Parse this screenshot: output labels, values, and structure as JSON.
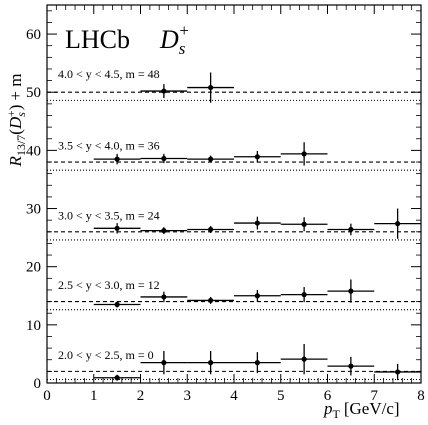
{
  "chart_data": {
    "type": "scatter",
    "experiment": "LHCb",
    "particle": {
      "base": "D",
      "sub": "s",
      "sup": "+"
    },
    "xlabel": {
      "main": "p",
      "sub": "T",
      "unit": "[GeV/c]"
    },
    "ylabel": {
      "prefix": "R",
      "sub": "13/7",
      "arg_base": "D",
      "arg_sub": "s",
      "arg_sup": "+",
      "suffix": "+ m"
    },
    "xlim": [
      0,
      8
    ],
    "ylim": [
      0,
      65
    ],
    "xticks": [
      0,
      1,
      2,
      3,
      4,
      5,
      6,
      7,
      8
    ],
    "yticks": [
      0,
      10,
      20,
      30,
      40,
      50,
      60
    ],
    "reference_lines": {
      "dashed_offset": 2.0,
      "dotted_offset": 0.6
    },
    "series": [
      {
        "label": "2.0 < y < 2.5, m = 0",
        "offset": 0,
        "points": [
          {
            "x": 1.5,
            "xlo": 1,
            "xhi": 2,
            "y": 0.9,
            "err": 0.5
          },
          {
            "x": 2.5,
            "xlo": 2,
            "xhi": 3,
            "y": 3.5,
            "err": 2.0
          },
          {
            "x": 3.5,
            "xlo": 3,
            "xhi": 4,
            "y": 3.5,
            "err": 2.0
          },
          {
            "x": 4.5,
            "xlo": 4,
            "xhi": 5,
            "y": 3.5,
            "err": 1.8
          },
          {
            "x": 5.5,
            "xlo": 5,
            "xhi": 6,
            "y": 4.1,
            "err": 2.6
          },
          {
            "x": 6.5,
            "xlo": 6,
            "xhi": 7,
            "y": 2.9,
            "err": 1.6
          },
          {
            "x": 7.5,
            "xlo": 7,
            "xhi": 8,
            "y": 1.9,
            "err": 1.4
          }
        ]
      },
      {
        "label": "2.5 < y < 3.0, m = 12",
        "offset": 12,
        "points": [
          {
            "x": 1.5,
            "xlo": 1,
            "xhi": 2,
            "y": 13.5,
            "err": 0.5
          },
          {
            "x": 2.5,
            "xlo": 2,
            "xhi": 3,
            "y": 14.8,
            "err": 0.9
          },
          {
            "x": 3.5,
            "xlo": 3,
            "xhi": 4,
            "y": 14.2,
            "err": 0.6
          },
          {
            "x": 4.5,
            "xlo": 4,
            "xhi": 5,
            "y": 15.0,
            "err": 1.0
          },
          {
            "x": 5.5,
            "xlo": 5,
            "xhi": 6,
            "y": 15.2,
            "err": 1.3
          },
          {
            "x": 6.5,
            "xlo": 6,
            "xhi": 7,
            "y": 15.8,
            "err": 2.0
          }
        ]
      },
      {
        "label": "3.0 < y < 3.5, m = 24",
        "offset": 24,
        "points": [
          {
            "x": 1.5,
            "xlo": 1,
            "xhi": 2,
            "y": 26.6,
            "err": 0.9
          },
          {
            "x": 2.5,
            "xlo": 2,
            "xhi": 3,
            "y": 26.2,
            "err": 0.6
          },
          {
            "x": 3.5,
            "xlo": 3,
            "xhi": 4,
            "y": 26.4,
            "err": 0.6
          },
          {
            "x": 4.5,
            "xlo": 4,
            "xhi": 5,
            "y": 27.5,
            "err": 1.1
          },
          {
            "x": 5.5,
            "xlo": 5,
            "xhi": 6,
            "y": 27.3,
            "err": 1.2
          },
          {
            "x": 6.5,
            "xlo": 6,
            "xhi": 7,
            "y": 26.4,
            "err": 1.0
          },
          {
            "x": 7.5,
            "xlo": 7,
            "xhi": 8,
            "y": 27.4,
            "err": 2.6
          }
        ]
      },
      {
        "label": "3.5 < y < 4.0, m = 36",
        "offset": 36,
        "points": [
          {
            "x": 1.5,
            "xlo": 1,
            "xhi": 2,
            "y": 38.5,
            "err": 0.9
          },
          {
            "x": 2.5,
            "xlo": 2,
            "xhi": 3,
            "y": 38.6,
            "err": 0.8
          },
          {
            "x": 3.5,
            "xlo": 3,
            "xhi": 4,
            "y": 38.5,
            "err": 0.6
          },
          {
            "x": 4.5,
            "xlo": 4,
            "xhi": 5,
            "y": 38.9,
            "err": 1.0
          },
          {
            "x": 5.5,
            "xlo": 5,
            "xhi": 6,
            "y": 39.4,
            "err": 2.0
          }
        ]
      },
      {
        "label": "4.0 < y < 4.5, m = 48",
        "offset": 48,
        "points": [
          {
            "x": 2.5,
            "xlo": 2,
            "xhi": 3,
            "y": 50.2,
            "err": 1.2
          },
          {
            "x": 3.5,
            "xlo": 3,
            "xhi": 4,
            "y": 50.8,
            "err": 2.6
          }
        ]
      }
    ]
  }
}
